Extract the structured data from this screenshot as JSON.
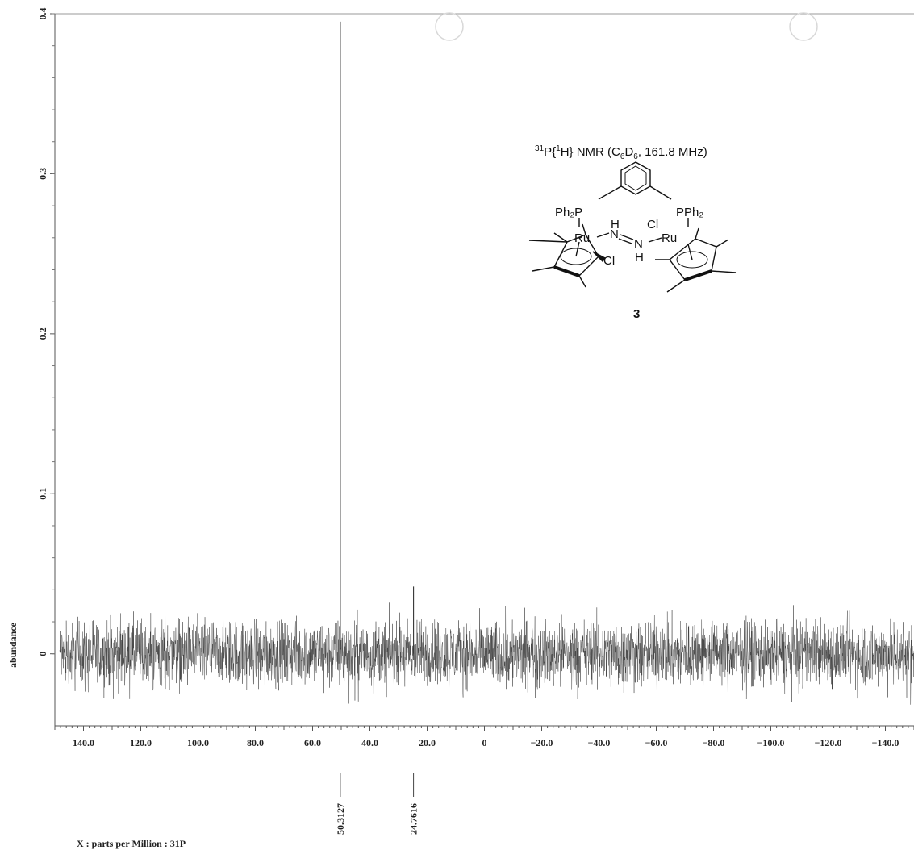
{
  "chart_data": {
    "type": "line",
    "title": "³¹P{¹H} NMR (C₆D₆, 161.8 MHz)",
    "title_parts": {
      "sup1": "31",
      "p": "P{",
      "sup2": "1",
      "h": "H} NMR (C",
      "sub1": "6",
      "d": "D",
      "sub2": "6",
      "rest": ", 161.8 MHz)"
    },
    "xlabel": "X : parts per Million : 31P",
    "ylabel": "abundance",
    "x_reversed": true,
    "xlim": [
      150.0,
      -150.0
    ],
    "ylim": [
      -0.045,
      0.4
    ],
    "x_ticks": [
      140.0,
      120.0,
      100.0,
      80.0,
      60.0,
      40.0,
      20.0,
      0,
      -20.0,
      -40.0,
      -60.0,
      -80.0,
      -100.0,
      -120.0,
      -140.0
    ],
    "x_tick_labels": [
      "140.0",
      "120.0",
      "100.0",
      "80.0",
      "60.0",
      "40.0",
      "20.0",
      "0",
      "−20.0",
      "−40.0",
      "−60.0",
      "−80.0",
      "−100.0",
      "−120.0",
      "−140.0"
    ],
    "y_ticks": [
      0,
      0.1,
      0.2,
      0.3,
      0.4
    ],
    "y_tick_labels": [
      "0",
      "0.1",
      "0.2",
      "0.3",
      "0.4"
    ],
    "noise_amplitude": 0.03,
    "series": [
      {
        "peaks": [
          {
            "x": 50.3127,
            "y": 0.395
          },
          {
            "x": 24.7616,
            "y": 0.042
          }
        ]
      }
    ],
    "peak_labels": [
      "50.3127",
      "24.7616"
    ],
    "grid": false
  },
  "compound": {
    "label": "3",
    "atoms": {
      "ph2p_left": "Ph₂P",
      "pph2_right": "PPh₂",
      "ru_left": "Ru",
      "ru_right": "Ru",
      "cl_left": "Cl",
      "cl_right": "Cl",
      "n_left": "N",
      "n_right": "N",
      "h_top": "H",
      "h_bottom": "H"
    }
  },
  "colors": {
    "trace": "#333333",
    "axis": "#444444",
    "structure": "#111111"
  }
}
